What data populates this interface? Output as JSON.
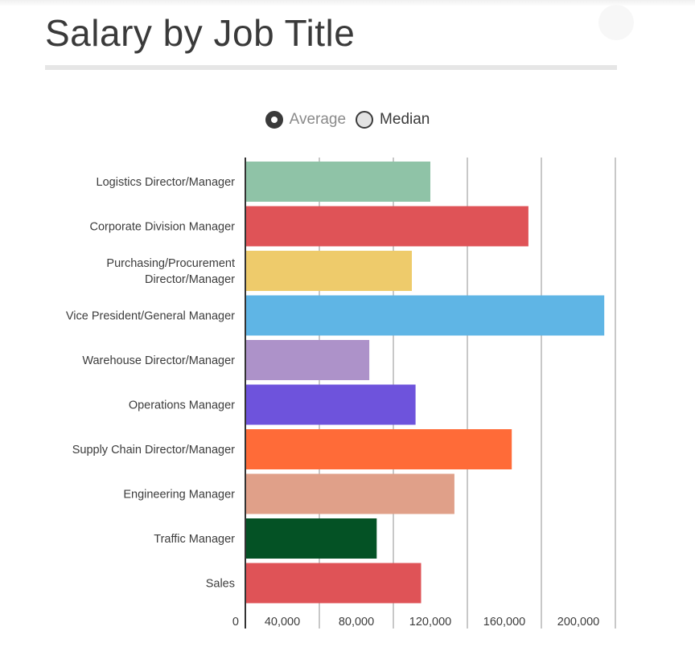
{
  "page": {
    "title": "Salary by Job Title"
  },
  "toggle": {
    "average_label": "Average",
    "median_label": "Median",
    "selected": "Average"
  },
  "chart_data": {
    "type": "bar",
    "orientation": "horizontal",
    "title": "Salary by Job Title",
    "xlabel": "",
    "ylabel": "",
    "xlim": [
      0,
      200000
    ],
    "x_ticks": [
      0,
      40000,
      80000,
      120000,
      160000,
      200000
    ],
    "x_tick_labels": [
      "0",
      "40,000",
      "80,000",
      "120,000",
      "160,000",
      "200,000"
    ],
    "grid": true,
    "categories": [
      "Logistics Director/Manager",
      "Corporate Division Manager",
      "Purchasing/Procurement Director/Manager",
      "Vice President/General Manager",
      "Warehouse Director/Manager",
      "Operations Manager",
      "Supply Chain Director/Manager",
      "Engineering Manager",
      "Traffic Manager",
      "Sales"
    ],
    "category_label_lines": [
      [
        "Logistics Director/Manager"
      ],
      [
        "Corporate Division Manager"
      ],
      [
        "Purchasing/Procurement",
        "Director/Manager"
      ],
      [
        "Vice President/General Manager"
      ],
      [
        "Warehouse Director/Manager"
      ],
      [
        "Operations Manager"
      ],
      [
        "Supply Chain Director/Manager"
      ],
      [
        "Engineering Manager"
      ],
      [
        "Traffic Manager"
      ],
      [
        "Sales"
      ]
    ],
    "values": [
      100000,
      153000,
      90000,
      194000,
      67000,
      92000,
      144000,
      113000,
      71000,
      95000
    ],
    "colors": [
      "#8fc3a7",
      "#df5357",
      "#eecb6b",
      "#5fb5e5",
      "#ad92c9",
      "#6e53dc",
      "#ff6b38",
      "#e0a089",
      "#045225",
      "#df5357"
    ]
  }
}
